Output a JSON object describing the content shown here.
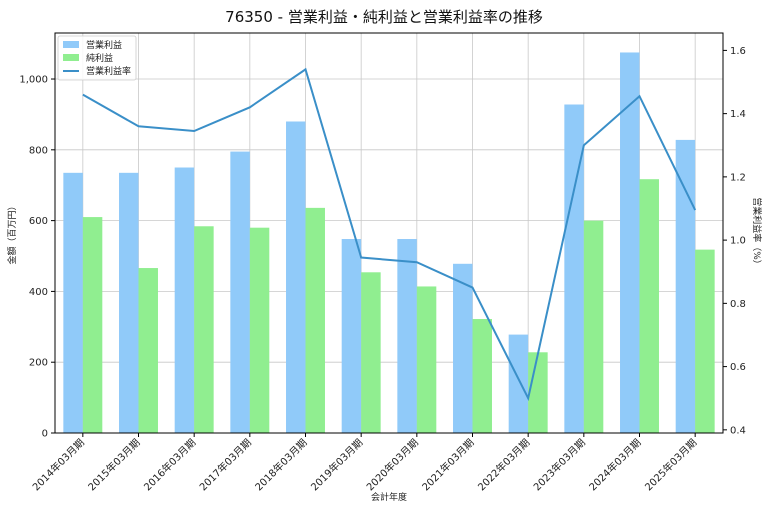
{
  "chart_data": {
    "type": "bar",
    "title": "76350 - 営業利益・純利益と営業利益率の推移",
    "xlabel": "会計年度",
    "ylabel": "金額（百万円）",
    "y2label": "営業利益率（%）",
    "ylim": [
      0,
      1130
    ],
    "y2lim": [
      0.39,
      1.655
    ],
    "yticks": [
      0,
      200,
      400,
      600,
      800,
      1000
    ],
    "yticklabels": [
      "0",
      "200",
      "400",
      "600",
      "800",
      "1,000"
    ],
    "y2ticks": [
      0.4,
      0.6,
      0.8,
      1.0,
      1.2,
      1.4,
      1.6
    ],
    "y2ticklabels": [
      "0.4",
      "0.6",
      "0.8",
      "1.0",
      "1.2",
      "1.4",
      "1.6"
    ],
    "grid": true,
    "legend_position": "top-left",
    "categories": [
      "2014年03月期",
      "2015年03月期",
      "2016年03月期",
      "2017年03月期",
      "2018年03月期",
      "2019年03月期",
      "2020年03月期",
      "2021年03月期",
      "2022年03月期",
      "2023年03月期",
      "2024年03月期",
      "2025年03月期"
    ],
    "series": [
      {
        "name": "営業利益",
        "kind": "bar",
        "axis": "left",
        "color": "#90caf9",
        "values": [
          735,
          735,
          750,
          795,
          880,
          548,
          548,
          478,
          278,
          928,
          1075,
          828
        ]
      },
      {
        "name": "純利益",
        "kind": "bar",
        "axis": "left",
        "color": "#90ee90",
        "values": [
          610,
          466,
          584,
          580,
          636,
          454,
          414,
          322,
          228,
          600,
          717,
          518
        ]
      },
      {
        "name": "営業利益率",
        "kind": "line",
        "axis": "right",
        "color": "#3a8fc8",
        "values": [
          1.46,
          1.36,
          1.345,
          1.42,
          1.54,
          0.945,
          0.93,
          0.85,
          0.5,
          1.3,
          1.455,
          1.095
        ]
      }
    ]
  }
}
